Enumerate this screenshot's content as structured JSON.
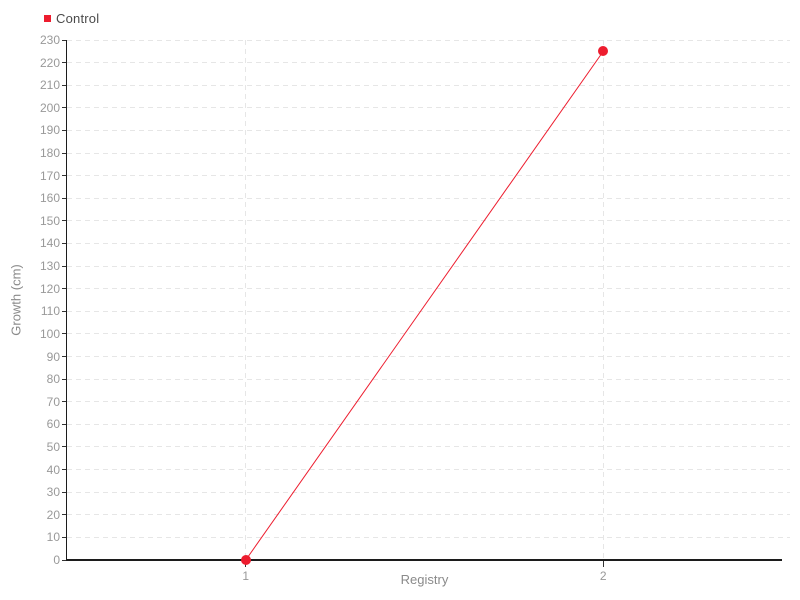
{
  "colors": {
    "background": "#ffffff",
    "series_red": "#ed1c2e",
    "grid": "#e6e6e6",
    "axis": "#1c1c1c",
    "tick": "#333333",
    "tick_label": "#999999",
    "axis_label": "#8a8a8a",
    "legend_text": "#4a4a4a"
  },
  "chart_data": {
    "type": "line",
    "title": "",
    "xlabel": "Registry",
    "ylabel": "Growth (cm)",
    "xlim": [
      0.5,
      2.5
    ],
    "ylim": [
      0,
      230
    ],
    "y_tick_step": 10,
    "x_ticks": [
      1,
      2
    ],
    "grid": true,
    "grid_style": "dashed",
    "legend_position": "top-left",
    "series": [
      {
        "name": "Control",
        "color": "#ed1c2e",
        "x": [
          1,
          2
        ],
        "y": [
          0,
          225
        ]
      }
    ]
  }
}
